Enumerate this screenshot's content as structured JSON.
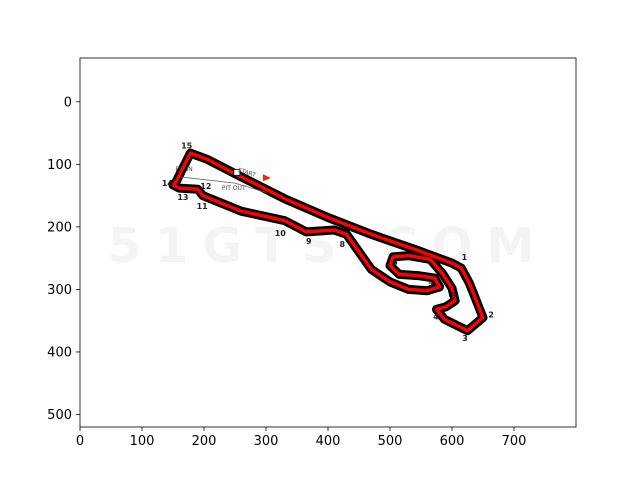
{
  "chart_data": {
    "type": "image",
    "xlim": [
      0,
      800
    ],
    "ylim": [
      520,
      -70
    ],
    "x_ticks": [
      0,
      100,
      200,
      300,
      400,
      500,
      600,
      700
    ],
    "y_ticks": [
      0,
      100,
      200,
      300,
      400,
      500
    ],
    "watermark": "51GTS.COM",
    "colors": {
      "track": "#000000",
      "line": "#ff0000",
      "arrow": "#ff2200",
      "watermark": "#000000"
    },
    "track_path": [
      [
        178,
        82
      ],
      [
        155,
        128
      ],
      [
        150,
        133
      ],
      [
        160,
        138
      ],
      [
        190,
        140
      ],
      [
        198,
        150
      ],
      [
        260,
        175
      ],
      [
        330,
        190
      ],
      [
        365,
        208
      ],
      [
        410,
        205
      ],
      [
        430,
        212
      ],
      [
        450,
        240
      ],
      [
        470,
        268
      ],
      [
        500,
        288
      ],
      [
        530,
        300
      ],
      [
        560,
        302
      ],
      [
        580,
        296
      ],
      [
        572,
        282
      ],
      [
        545,
        278
      ],
      [
        515,
        276
      ],
      [
        500,
        262
      ],
      [
        505,
        248
      ],
      [
        530,
        246
      ],
      [
        565,
        252
      ],
      [
        585,
        275
      ],
      [
        600,
        298
      ],
      [
        605,
        318
      ],
      [
        590,
        328
      ],
      [
        575,
        332
      ],
      [
        588,
        348
      ],
      [
        625,
        366
      ],
      [
        650,
        345
      ],
      [
        640,
        320
      ],
      [
        628,
        290
      ],
      [
        615,
        266
      ],
      [
        600,
        258
      ],
      [
        540,
        236
      ],
      [
        470,
        212
      ],
      [
        400,
        185
      ],
      [
        330,
        155
      ],
      [
        260,
        120
      ],
      [
        205,
        92
      ],
      [
        178,
        82
      ]
    ],
    "corners": [
      {
        "label": "1",
        "x": 620,
        "y": 248
      },
      {
        "label": "2",
        "x": 663,
        "y": 340
      },
      {
        "label": "3",
        "x": 621,
        "y": 378
      },
      {
        "label": "4",
        "x": 574,
        "y": 343
      },
      {
        "label": "5",
        "x": 602,
        "y": 310
      },
      {
        "label": "6",
        "x": 508,
        "y": 256
      },
      {
        "label": "7",
        "x": 566,
        "y": 294
      },
      {
        "label": "8",
        "x": 423,
        "y": 227
      },
      {
        "label": "9",
        "x": 369,
        "y": 223
      },
      {
        "label": "10",
        "x": 323,
        "y": 210
      },
      {
        "label": "11",
        "x": 197,
        "y": 167
      },
      {
        "label": "12",
        "x": 203,
        "y": 135
      },
      {
        "label": "13",
        "x": 166,
        "y": 152
      },
      {
        "label": "14",
        "x": 141,
        "y": 130
      },
      {
        "label": "15",
        "x": 172,
        "y": 70
      }
    ],
    "annotations": [
      {
        "label": "PIT IN",
        "x": 168,
        "y": 111
      },
      {
        "label": "START",
        "x": 268,
        "y": 116
      },
      {
        "label": "PIT OUT",
        "x": 248,
        "y": 141
      }
    ]
  }
}
